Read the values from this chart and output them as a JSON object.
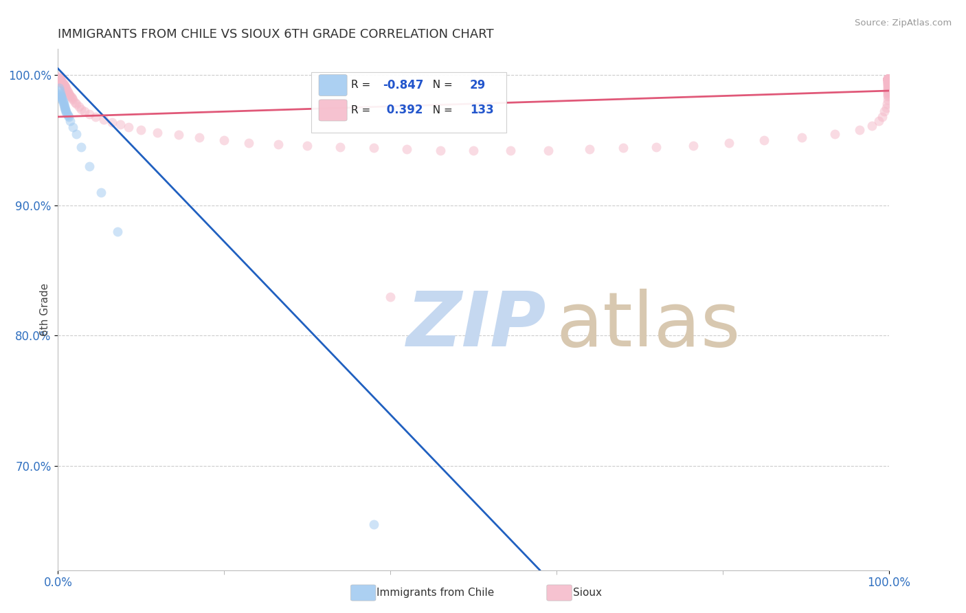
{
  "title": "IMMIGRANTS FROM CHILE VS SIOUX 6TH GRADE CORRELATION CHART",
  "source_text": "Source: ZipAtlas.com",
  "ylabel": "6th Grade",
  "xlim": [
    0.0,
    1.0
  ],
  "ylim": [
    0.62,
    1.02
  ],
  "xtick_labels": [
    "0.0%",
    "100.0%"
  ],
  "xtick_positions": [
    0.0,
    1.0
  ],
  "ytick_labels": [
    "70.0%",
    "80.0%",
    "90.0%",
    "100.0%"
  ],
  "ytick_positions": [
    0.7,
    0.8,
    0.9,
    1.0
  ],
  "legend_label1": "Immigrants from Chile",
  "legend_label2": "Sioux",
  "R1": -0.847,
  "N1": 29,
  "R2": 0.392,
  "N2": 133,
  "color_chile": "#9ec8f0",
  "color_sioux": "#f5b8c8",
  "trendline_chile_color": "#2060c0",
  "trendline_sioux_color": "#e05878",
  "watermark_zip": "ZIP",
  "watermark_atlas": "atlas",
  "watermark_color_zip": "#c5d8f0",
  "watermark_color_atlas": "#d8c8b0",
  "background_color": "#ffffff",
  "grid_color": "#cccccc",
  "scatter_alpha": 0.5,
  "scatter_size": 100,
  "chile_x": [
    0.001,
    0.002,
    0.003,
    0.003,
    0.004,
    0.004,
    0.005,
    0.005,
    0.006,
    0.006,
    0.007,
    0.007,
    0.008,
    0.008,
    0.009,
    0.009,
    0.01,
    0.01,
    0.011,
    0.012,
    0.013,
    0.015,
    0.018,
    0.022,
    0.028,
    0.038,
    0.052,
    0.072,
    0.38
  ],
  "chile_y": [
    0.99,
    0.988,
    0.986,
    0.985,
    0.984,
    0.983,
    0.982,
    0.981,
    0.98,
    0.979,
    0.978,
    0.977,
    0.976,
    0.975,
    0.974,
    0.973,
    0.972,
    0.971,
    0.97,
    0.969,
    0.968,
    0.965,
    0.96,
    0.955,
    0.945,
    0.93,
    0.91,
    0.88,
    0.655
  ],
  "sioux_x": [
    0.001,
    0.001,
    0.001,
    0.002,
    0.002,
    0.002,
    0.003,
    0.003,
    0.003,
    0.004,
    0.004,
    0.005,
    0.005,
    0.006,
    0.006,
    0.007,
    0.007,
    0.008,
    0.008,
    0.009,
    0.01,
    0.01,
    0.011,
    0.012,
    0.013,
    0.014,
    0.015,
    0.016,
    0.017,
    0.018,
    0.02,
    0.022,
    0.025,
    0.028,
    0.032,
    0.038,
    0.045,
    0.055,
    0.065,
    0.075,
    0.085,
    0.1,
    0.12,
    0.145,
    0.17,
    0.2,
    0.23,
    0.265,
    0.3,
    0.34,
    0.38,
    0.42,
    0.46,
    0.5,
    0.545,
    0.59,
    0.64,
    0.68,
    0.72,
    0.765,
    0.808,
    0.85,
    0.895,
    0.935,
    0.965,
    0.98,
    0.988,
    0.992,
    0.995,
    0.997,
    0.998,
    0.999,
    0.999,
    0.999,
    0.999,
    0.999,
    0.999,
    0.999,
    0.999,
    0.999,
    0.999,
    0.999,
    0.999,
    0.999,
    0.999,
    0.999,
    0.999,
    0.999,
    0.999,
    0.999,
    0.999,
    0.999,
    0.999,
    0.999,
    0.999,
    0.999,
    0.999,
    0.999,
    0.999,
    0.999,
    0.999,
    0.999,
    0.999,
    0.999,
    0.999,
    0.999,
    0.999,
    0.999,
    0.999,
    0.999,
    0.999,
    0.999,
    0.999,
    0.999,
    0.999,
    0.999,
    0.999,
    0.999,
    0.999,
    0.999,
    0.999,
    0.999,
    0.999,
    0.999,
    0.999,
    0.999,
    0.999,
    0.999,
    0.999,
    0.999,
    0.999,
    0.999,
    0.4
  ],
  "sioux_y": [
    0.999,
    0.998,
    0.997,
    0.998,
    0.997,
    0.996,
    0.997,
    0.996,
    0.995,
    0.996,
    0.995,
    0.995,
    0.994,
    0.994,
    0.993,
    0.993,
    0.992,
    0.992,
    0.991,
    0.991,
    0.99,
    0.989,
    0.988,
    0.987,
    0.986,
    0.985,
    0.984,
    0.983,
    0.982,
    0.981,
    0.979,
    0.978,
    0.976,
    0.974,
    0.972,
    0.97,
    0.968,
    0.966,
    0.964,
    0.962,
    0.96,
    0.958,
    0.956,
    0.954,
    0.952,
    0.95,
    0.948,
    0.947,
    0.946,
    0.945,
    0.944,
    0.943,
    0.942,
    0.942,
    0.942,
    0.942,
    0.943,
    0.944,
    0.945,
    0.946,
    0.948,
    0.95,
    0.952,
    0.955,
    0.958,
    0.961,
    0.965,
    0.968,
    0.972,
    0.975,
    0.978,
    0.981,
    0.984,
    0.985,
    0.986,
    0.987,
    0.988,
    0.989,
    0.99,
    0.991,
    0.992,
    0.993,
    0.994,
    0.994,
    0.995,
    0.995,
    0.995,
    0.996,
    0.996,
    0.996,
    0.997,
    0.997,
    0.997,
    0.997,
    0.997,
    0.997,
    0.997,
    0.997,
    0.997,
    0.997,
    0.997,
    0.997,
    0.997,
    0.997,
    0.997,
    0.997,
    0.997,
    0.997,
    0.997,
    0.997,
    0.997,
    0.997,
    0.997,
    0.997,
    0.997,
    0.997,
    0.997,
    0.997,
    0.997,
    0.997,
    0.997,
    0.997,
    0.997,
    0.997,
    0.997,
    0.997,
    0.997,
    0.997,
    0.997,
    0.997,
    0.997,
    0.997,
    0.83
  ],
  "chile_trend_x0": 0.0,
  "chile_trend_y0": 1.005,
  "chile_trend_x1": 0.58,
  "chile_trend_y1": 0.62,
  "sioux_trend_x0": 0.0,
  "sioux_trend_y0": 0.968,
  "sioux_trend_x1": 1.0,
  "sioux_trend_y1": 0.988
}
